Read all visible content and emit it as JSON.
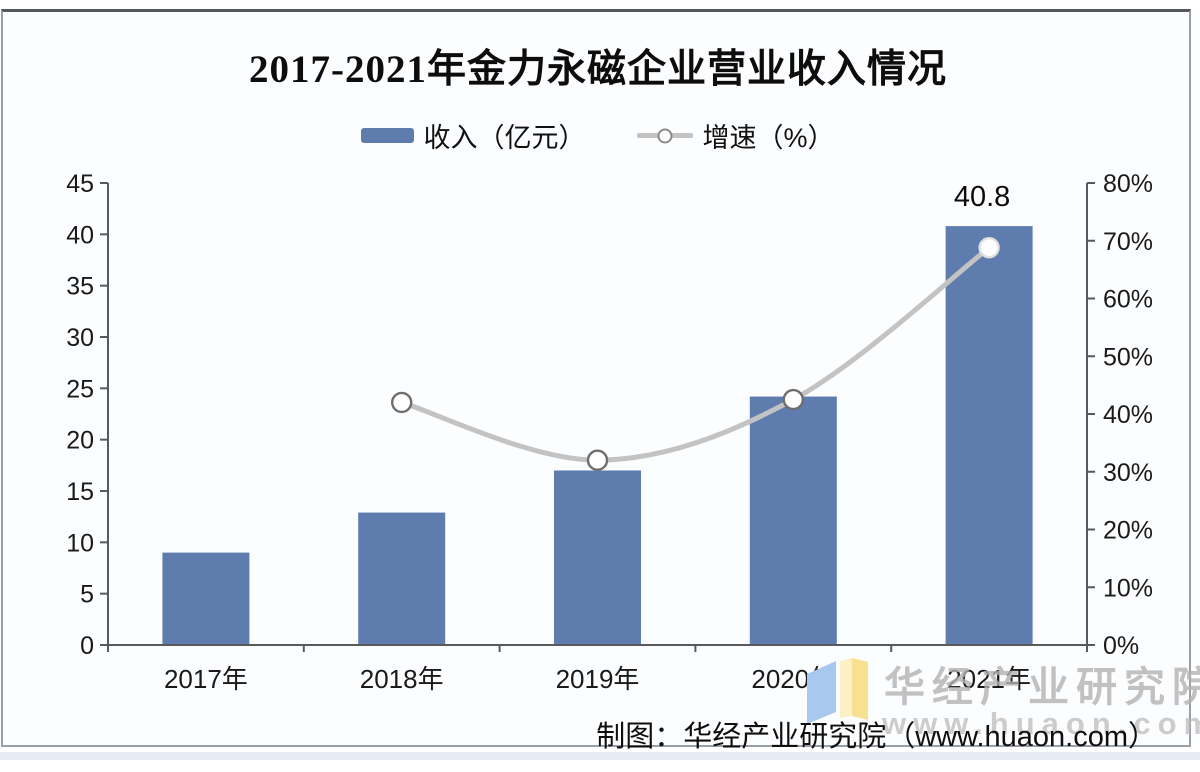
{
  "title": "2017-2021年金力永磁企业营业收入情况",
  "legend": [
    {
      "label": "收入（亿元）",
      "type": "bar",
      "color": "#5e7dae"
    },
    {
      "label": "增速（%）",
      "type": "line",
      "color": "#c3c3c3"
    }
  ],
  "chart_data": {
    "type": "bar+line combo",
    "title": "2017-2021年金力永磁企业营业收入情况",
    "categories": [
      "2017年",
      "2018年",
      "2019年",
      "2020年",
      "2021年"
    ],
    "series": [
      {
        "name": "收入（亿元）",
        "type": "bar",
        "axis": "left",
        "color": "#5e7dae",
        "values": [
          9.0,
          12.9,
          17.0,
          24.2,
          40.8
        ]
      },
      {
        "name": "增速（%）",
        "type": "line",
        "axis": "right",
        "color": "#c3c3c3",
        "marker": {
          "fill": "#ffffff",
          "stroke": "#6e6e6e",
          "last_stroke": "#e0e0e0"
        },
        "values": [
          null,
          42.0,
          32.0,
          42.5,
          68.8
        ]
      }
    ],
    "left_axis": {
      "min": 0,
      "max": 45,
      "step": 5,
      "suffix": ""
    },
    "right_axis": {
      "min": 0,
      "max": 80,
      "step": 10,
      "suffix": "%"
    },
    "data_labels": [
      {
        "category_index": 4,
        "series": "收入（亿元）",
        "text": "40.8"
      }
    ],
    "grid": false,
    "legend_position": "top",
    "axis_color": "#58595b",
    "label_color": "#1a1a1a"
  },
  "watermark": {
    "brand": "华经产业研究院",
    "url": "www.huaon.com",
    "color": "#b3b3b3",
    "logo_blue": "#a9c8ef",
    "logo_yellow": "#f8e093",
    "logo_yellow_light": "#fdf0c4"
  },
  "attribution": "制图：华经产业研究院（www.huaon.com）"
}
